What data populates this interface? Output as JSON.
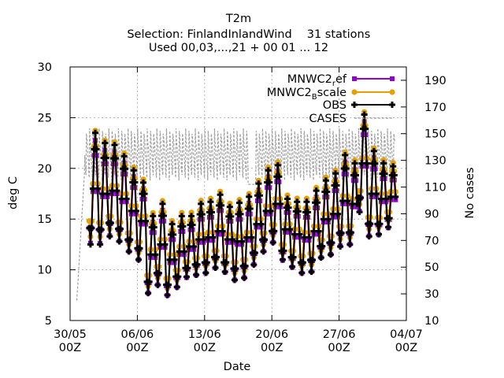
{
  "chart_data": {
    "type": "line",
    "title": "T2m",
    "subtitle": "Selection: FinlandInlandWind",
    "subtitle_extra": "31 stations",
    "subtitle2": "Used 00,03,...,21 + 00 01 ... 12",
    "xlabel": "Date",
    "ylabel": "deg C",
    "y2label": "No cases",
    "x_start_day": "2025-05-30",
    "xlim_days": [
      0,
      35
    ],
    "x_ticks": [
      {
        "day": 0,
        "label": "30/05",
        "sub": "00Z"
      },
      {
        "day": 7,
        "label": "06/06",
        "sub": "00Z"
      },
      {
        "day": 14,
        "label": "13/06",
        "sub": "00Z"
      },
      {
        "day": 21,
        "label": "20/06",
        "sub": "00Z"
      },
      {
        "day": 28,
        "label": "27/06",
        "sub": "00Z"
      },
      {
        "day": 35,
        "label": "04/07",
        "sub": "00Z"
      }
    ],
    "ylim": [
      5,
      30
    ],
    "y_ticks": [
      5,
      10,
      15,
      20,
      25,
      30
    ],
    "y2lim": [
      10,
      200
    ],
    "y2_ticks": [
      10,
      30,
      50,
      70,
      90,
      110,
      130,
      150,
      170,
      190
    ],
    "grid": true,
    "legend_position": "top-right",
    "daily_mean": [
      null,
      null,
      18.0,
      17.5,
      17.8,
      17.0,
      15.8,
      14.8,
      11.5,
      12.5,
      11.0,
      11.8,
      12.3,
      13.0,
      13.2,
      13.8,
      13.0,
      12.8,
      13.2,
      14.5,
      15.8,
      16.5,
      14.0,
      13.5,
      13.2,
      13.8,
      15.0,
      15.5,
      16.8,
      16.5,
      20.5,
      17.5,
      17.0,
      17.2,
      null,
      null
    ],
    "daily_amplitude": [
      null,
      null,
      5.5,
      5.0,
      4.5,
      4.2,
      4.0,
      3.8,
      3.8,
      4.0,
      3.5,
      3.5,
      3.0,
      3.5,
      3.5,
      3.6,
      3.2,
      3.8,
      4.0,
      4.0,
      4.0,
      3.8,
      3.0,
      3.2,
      3.5,
      4.0,
      3.8,
      4.0,
      4.5,
      4.0,
      4.8,
      4.2,
      3.5,
      3.0,
      null,
      null
    ],
    "cases_levels": [
      150,
      145,
      140,
      135,
      130,
      125,
      120,
      115
    ],
    "series": [
      {
        "name": "MNWC2ref",
        "color": "#9400d3",
        "marker": "square",
        "offset": -0.3,
        "amp_scale": 0.92
      },
      {
        "name": "MNWC2Bscale",
        "color": "#e69f00",
        "marker": "circle",
        "offset": 0.5,
        "amp_scale": 0.95
      },
      {
        "name": "OBS",
        "color": "#000000",
        "marker": "plus",
        "offset": 0.0,
        "amp_scale": 1.0
      },
      {
        "name": "CASES",
        "color": "#a0a0a0",
        "marker": "none",
        "axis": "y2",
        "dashed": true
      }
    ],
    "legend_labels": [
      {
        "base": "MNWC2",
        "sub": "r",
        "rest": "ef"
      },
      {
        "base": "MNWC2",
        "sub": "B",
        "rest": "scale"
      },
      {
        "base": "OBS",
        "sub": "",
        "rest": ""
      },
      {
        "base": "CASES",
        "sub": "",
        "rest": ""
      }
    ]
  }
}
